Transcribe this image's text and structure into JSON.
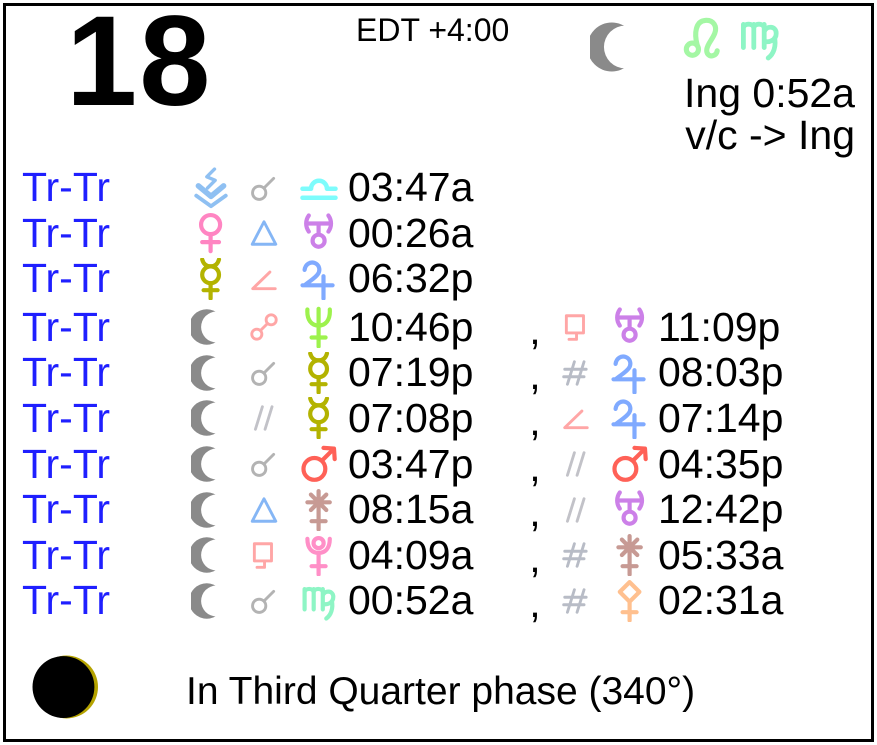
{
  "header": {
    "day": "18",
    "timezone": "EDT +4:00",
    "moon_icon": "moon",
    "sign_icons": [
      "leo",
      "virgo"
    ],
    "ingress_label": "Ing 0:52a",
    "void_of_course_label": "v/c -> Ing"
  },
  "rows": [
    {
      "label": "Tr-Tr",
      "p1": "vesta",
      "asp": "conjunction",
      "p2": "libra",
      "time": "03:47a"
    },
    {
      "label": "Tr-Tr",
      "p1": "venus",
      "asp": "trine",
      "p2": "uranus",
      "time": "00:26a"
    },
    {
      "label": "Tr-Tr",
      "p1": "mercury",
      "asp": "semisquare",
      "p2": "jupiter",
      "time": "06:32p"
    },
    {
      "label": "Tr-Tr",
      "p1": "moon",
      "asp": "opposition",
      "p2": "neptune",
      "time": "10:46p",
      "sep": ",",
      "asp2": "square",
      "p3": "uranus",
      "time2": "11:09p"
    },
    {
      "label": "Tr-Tr",
      "p1": "moon",
      "asp": "conjunction",
      "p2": "mercury",
      "time": "07:19p",
      "sep": ",",
      "asp2": "contraparallel",
      "p3": "jupiter",
      "time2": "08:03p"
    },
    {
      "label": "Tr-Tr",
      "p1": "moon",
      "asp": "parallel",
      "p2": "mercury",
      "time": "07:08p",
      "sep": ",",
      "asp2": "semisquare",
      "p3": "jupiter",
      "time2": "07:14p"
    },
    {
      "label": "Tr-Tr",
      "p1": "moon",
      "asp": "conjunction",
      "p2": "mars",
      "time": "03:47p",
      "sep": ",",
      "asp2": "parallel",
      "p3": "mars",
      "time2": "04:35p"
    },
    {
      "label": "Tr-Tr",
      "p1": "moon",
      "asp": "trine",
      "p2": "juno",
      "time": "08:15a",
      "sep": ",",
      "asp2": "parallel",
      "p3": "uranus",
      "time2": "12:42p"
    },
    {
      "label": "Tr-Tr",
      "p1": "moon",
      "asp": "square",
      "p2": "pluto",
      "time": "04:09a",
      "sep": ",",
      "asp2": "contraparallel",
      "p3": "juno",
      "time2": "05:33a"
    },
    {
      "label": "Tr-Tr",
      "p1": "moon",
      "asp": "conjunction",
      "p2": "virgo",
      "time": "00:52a",
      "sep": ",",
      "asp2": "contraparallel",
      "p3": "pallas",
      "time2": "02:31a"
    }
  ],
  "footer": {
    "phase_icon": "phase_disc",
    "phase_label": "In Third Quarter phase (340°)"
  },
  "colors": {
    "label_blue": "#1f1fff",
    "text_black": "#000000",
    "moon": "#8a8a8a",
    "vesta": "#8fc0f2",
    "venus": "#ff85c2",
    "mercury": "#b3b300",
    "mars": "#ff6157",
    "jupiter": "#80aaff",
    "uranus": "#cc80e8",
    "neptune": "#9df24d",
    "pluto": "#ff8fc7",
    "juno": "#c79a94",
    "pallas": "#ffc08f",
    "leo": "#a4f7a4",
    "virgo": "#8ef5c5",
    "libra": "#7dfcfc",
    "conjunction": "#b3b3b3",
    "opposition": "#ffa6a6",
    "square": "#ffa6a6",
    "semisquare": "#ffa6a6",
    "trine": "#85b6f5",
    "parallel": "#c2c2c8",
    "contraparallel": "#b8bcc6",
    "phase_dark": "#000000",
    "phase_sliver": "#b5a300"
  }
}
